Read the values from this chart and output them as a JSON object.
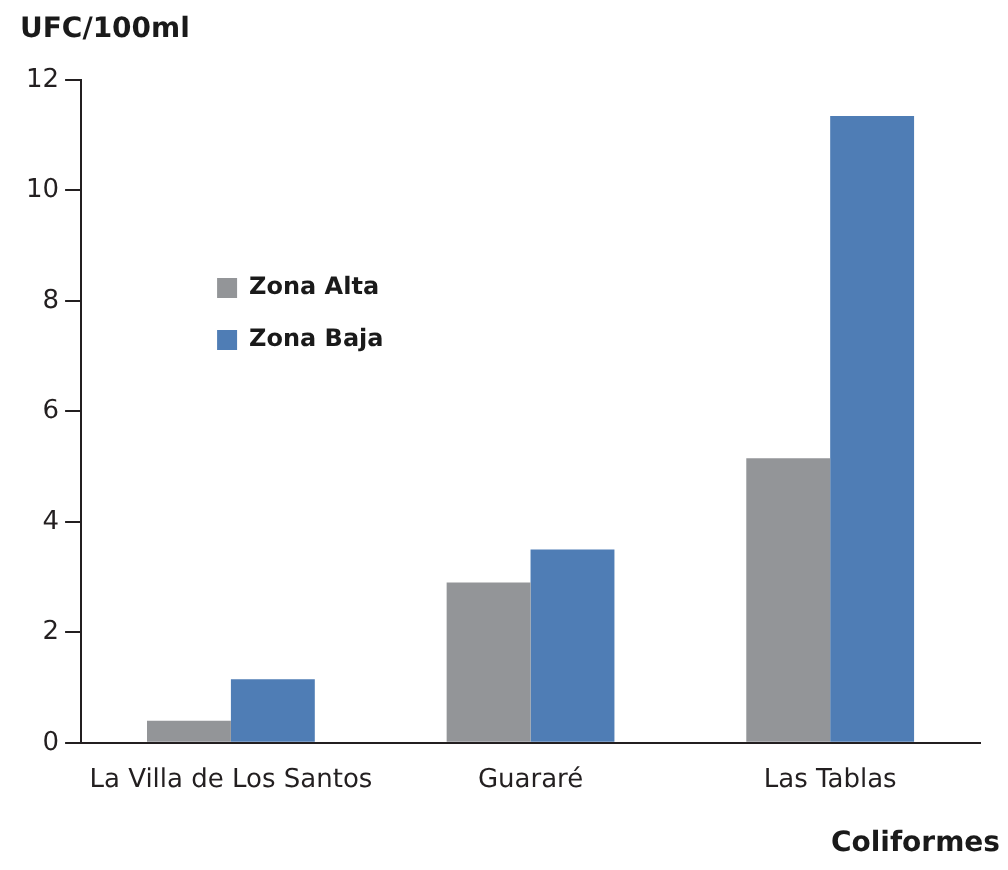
{
  "chart_data": {
    "type": "bar",
    "ylabel": "UFC/100ml",
    "xlabel": "Coliformes",
    "categories": [
      "La Villa de Los Santos",
      "Guararé",
      "Las Tablas"
    ],
    "series": [
      {
        "name": "Zona Alta",
        "color": "#939598",
        "values": [
          0.4,
          2.9,
          5.15
        ]
      },
      {
        "name": "Zona Baja",
        "color": "#4f7db5",
        "values": [
          1.15,
          3.5,
          11.35
        ]
      }
    ],
    "ylim": [
      0,
      12
    ],
    "yticks": [
      0,
      2,
      4,
      6,
      8,
      10,
      12
    ],
    "grid": false,
    "legend": "top left"
  }
}
